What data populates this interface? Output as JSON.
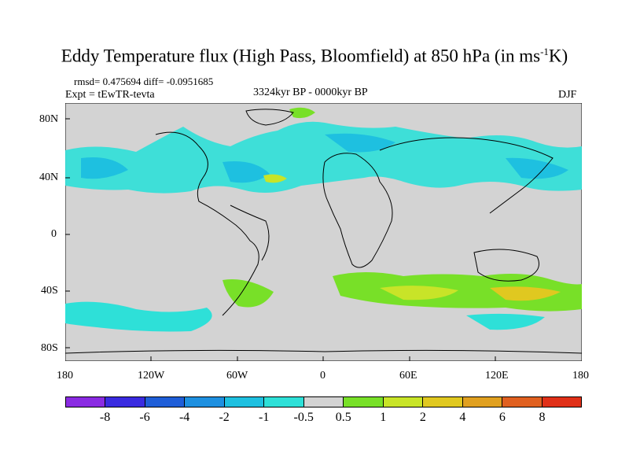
{
  "title_main": "Eddy Temperature flux (High Pass, Bloomfield) at 850 hPa (in ms",
  "title_sup": "-1",
  "title_end": "K)",
  "stats_line": "rmsd= 0.475694  diff= -0.0951685",
  "expt": "Expt = tEwTR-tevta",
  "period": "3324kyr BP - 0000kyr BP",
  "season": "DJF",
  "lat_labels": [
    "80N",
    "40N",
    "0",
    "40S",
    "80S"
  ],
  "lon_labels": [
    "180",
    "120W",
    "60W",
    "0",
    "60E",
    "120E",
    "180"
  ],
  "colorbar": {
    "labels": [
      "-8",
      "-6",
      "-4",
      "-2",
      "-1",
      "-0.5",
      "0.5",
      "1",
      "2",
      "4",
      "6",
      "8"
    ],
    "colors": [
      "#8a2be2",
      "#3a2be0",
      "#1f5ed8",
      "#1e90e0",
      "#1ec0e0",
      "#2ee0d8",
      "#d3d3d3",
      "#78e028",
      "#c8e428",
      "#e0c820",
      "#e0a020",
      "#e06020",
      "#e03018"
    ]
  },
  "map_colors": {
    "ocean_land_base": "#d3d3d3",
    "coast": "#000000"
  }
}
